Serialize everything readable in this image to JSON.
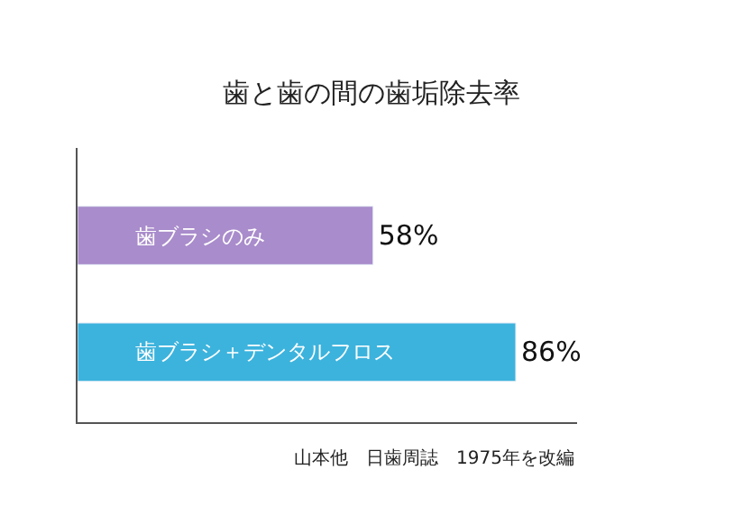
{
  "chart_data": {
    "type": "bar",
    "orientation": "horizontal",
    "title": "歯と歯の間の歯垢除去率",
    "categories": [
      "歯ブラシのみ",
      "歯ブラシ＋デンタルフロス"
    ],
    "values": [
      58,
      86
    ],
    "colors": [
      "#a98ccb",
      "#3cb3dd"
    ],
    "value_labels": [
      "58%",
      "86%"
    ],
    "annotations": [
      "山本他　日歯周誌　1975年を改編"
    ]
  }
}
